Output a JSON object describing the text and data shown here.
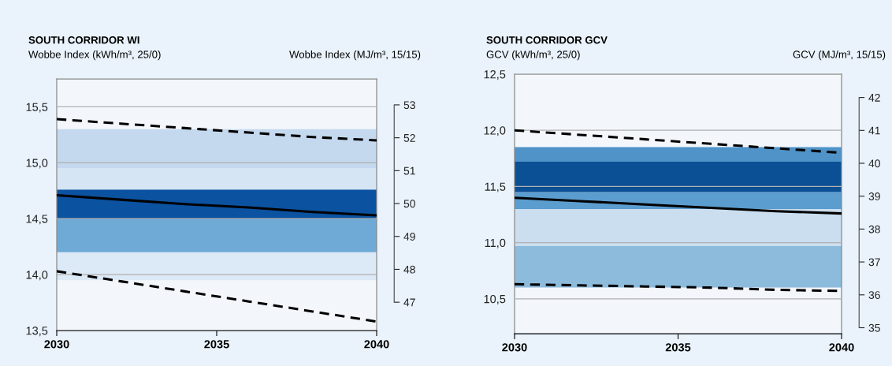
{
  "chart_data": [
    {
      "type": "line",
      "title": "SOUTH CORRIDOR WI",
      "ylabel": "Wobbe Index (kWh/m³, 25/0)",
      "y2label": "Wobbe Index (MJ/m³, 15/15)",
      "x": [
        2030,
        2032,
        2034,
        2036,
        2038,
        2040
      ],
      "xlim": [
        2030,
        2040
      ],
      "xticks": [
        2030,
        2035,
        2040
      ],
      "ylim": [
        13.5,
        15.75
      ],
      "yticks": [
        {
          "value": 13.5,
          "label": "13,5"
        },
        {
          "value": 14.0,
          "label": "14,0"
        },
        {
          "value": 14.5,
          "label": "14,5"
        },
        {
          "value": 15.0,
          "label": "15,0"
        },
        {
          "value": 15.5,
          "label": "15,5"
        }
      ],
      "y2lim": [
        46.14,
        53.79
      ],
      "y2ticks": [
        47,
        48,
        49,
        50,
        51,
        52,
        53
      ],
      "grid": "y",
      "legend": false,
      "bands": [
        {
          "axis": "y",
          "from": 13.95,
          "to": 14.2,
          "color": "#dce9f6"
        },
        {
          "axis": "y",
          "from": 14.2,
          "to": 14.5,
          "color": "#6eaad5"
        },
        {
          "axis": "y",
          "from": 14.5,
          "to": 14.76,
          "color": "#0b52a0"
        },
        {
          "axis": "y",
          "from": 14.76,
          "to": 14.95,
          "color": "#d6e5f4"
        },
        {
          "axis": "y",
          "from": 14.95,
          "to": 15.3,
          "color": "#c4d9ee"
        }
      ],
      "series": [
        {
          "color": "#000000",
          "line_style": "solid",
          "values": [
            14.71,
            14.67,
            14.63,
            14.6,
            14.56,
            14.53
          ]
        },
        {
          "color": "#000000",
          "line_style": "dashed",
          "values": [
            15.39,
            15.35,
            15.31,
            15.27,
            15.23,
            15.2
          ]
        },
        {
          "color": "#000000",
          "line_style": "dashed",
          "values": [
            14.03,
            13.94,
            13.85,
            13.76,
            13.67,
            13.58
          ]
        }
      ]
    },
    {
      "type": "line",
      "title": "SOUTH CORRIDOR GCV",
      "ylabel": "GCV (kWh/m³, 25/0)",
      "y2label": "GCV (MJ/m³, 15/15)",
      "x": [
        2030,
        2032,
        2034,
        2036,
        2038,
        2040
      ],
      "xlim": [
        2030,
        2040
      ],
      "xticks": [
        2030,
        2035,
        2040
      ],
      "ylim": [
        10.19,
        12.5
      ],
      "yticks": [
        {
          "value": 10.5,
          "label": "10,5"
        },
        {
          "value": 11.0,
          "label": "11,0"
        },
        {
          "value": 11.5,
          "label": "11,5"
        },
        {
          "value": 12.0,
          "label": "12,0"
        },
        {
          "value": 12.5,
          "label": "12,5"
        }
      ],
      "y2lim": [
        34.82,
        42.71
      ],
      "y2ticks": [
        35,
        36,
        37,
        38,
        39,
        40,
        41,
        42
      ],
      "grid": "y",
      "legend": false,
      "bands": [
        {
          "axis": "y",
          "from": 10.6,
          "to": 10.97,
          "color": "#8dbbdc"
        },
        {
          "axis": "y",
          "from": 10.97,
          "to": 11.3,
          "color": "#cbdef0"
        },
        {
          "axis": "y",
          "from": 11.3,
          "to": 11.45,
          "color": "#5b9dcf"
        },
        {
          "axis": "y",
          "from": 11.45,
          "to": 11.72,
          "color": "#0b4f94"
        },
        {
          "axis": "y",
          "from": 11.72,
          "to": 11.85,
          "color": "#4f93c8"
        }
      ],
      "series": [
        {
          "color": "#000000",
          "line_style": "solid",
          "values": [
            11.4,
            11.37,
            11.34,
            11.31,
            11.28,
            11.26
          ]
        },
        {
          "color": "#000000",
          "line_style": "dashed",
          "values": [
            12.0,
            11.96,
            11.92,
            11.88,
            11.84,
            11.8
          ]
        },
        {
          "color": "#000000",
          "line_style": "dashed",
          "values": [
            10.63,
            10.62,
            10.61,
            10.6,
            10.58,
            10.57
          ]
        }
      ]
    }
  ]
}
